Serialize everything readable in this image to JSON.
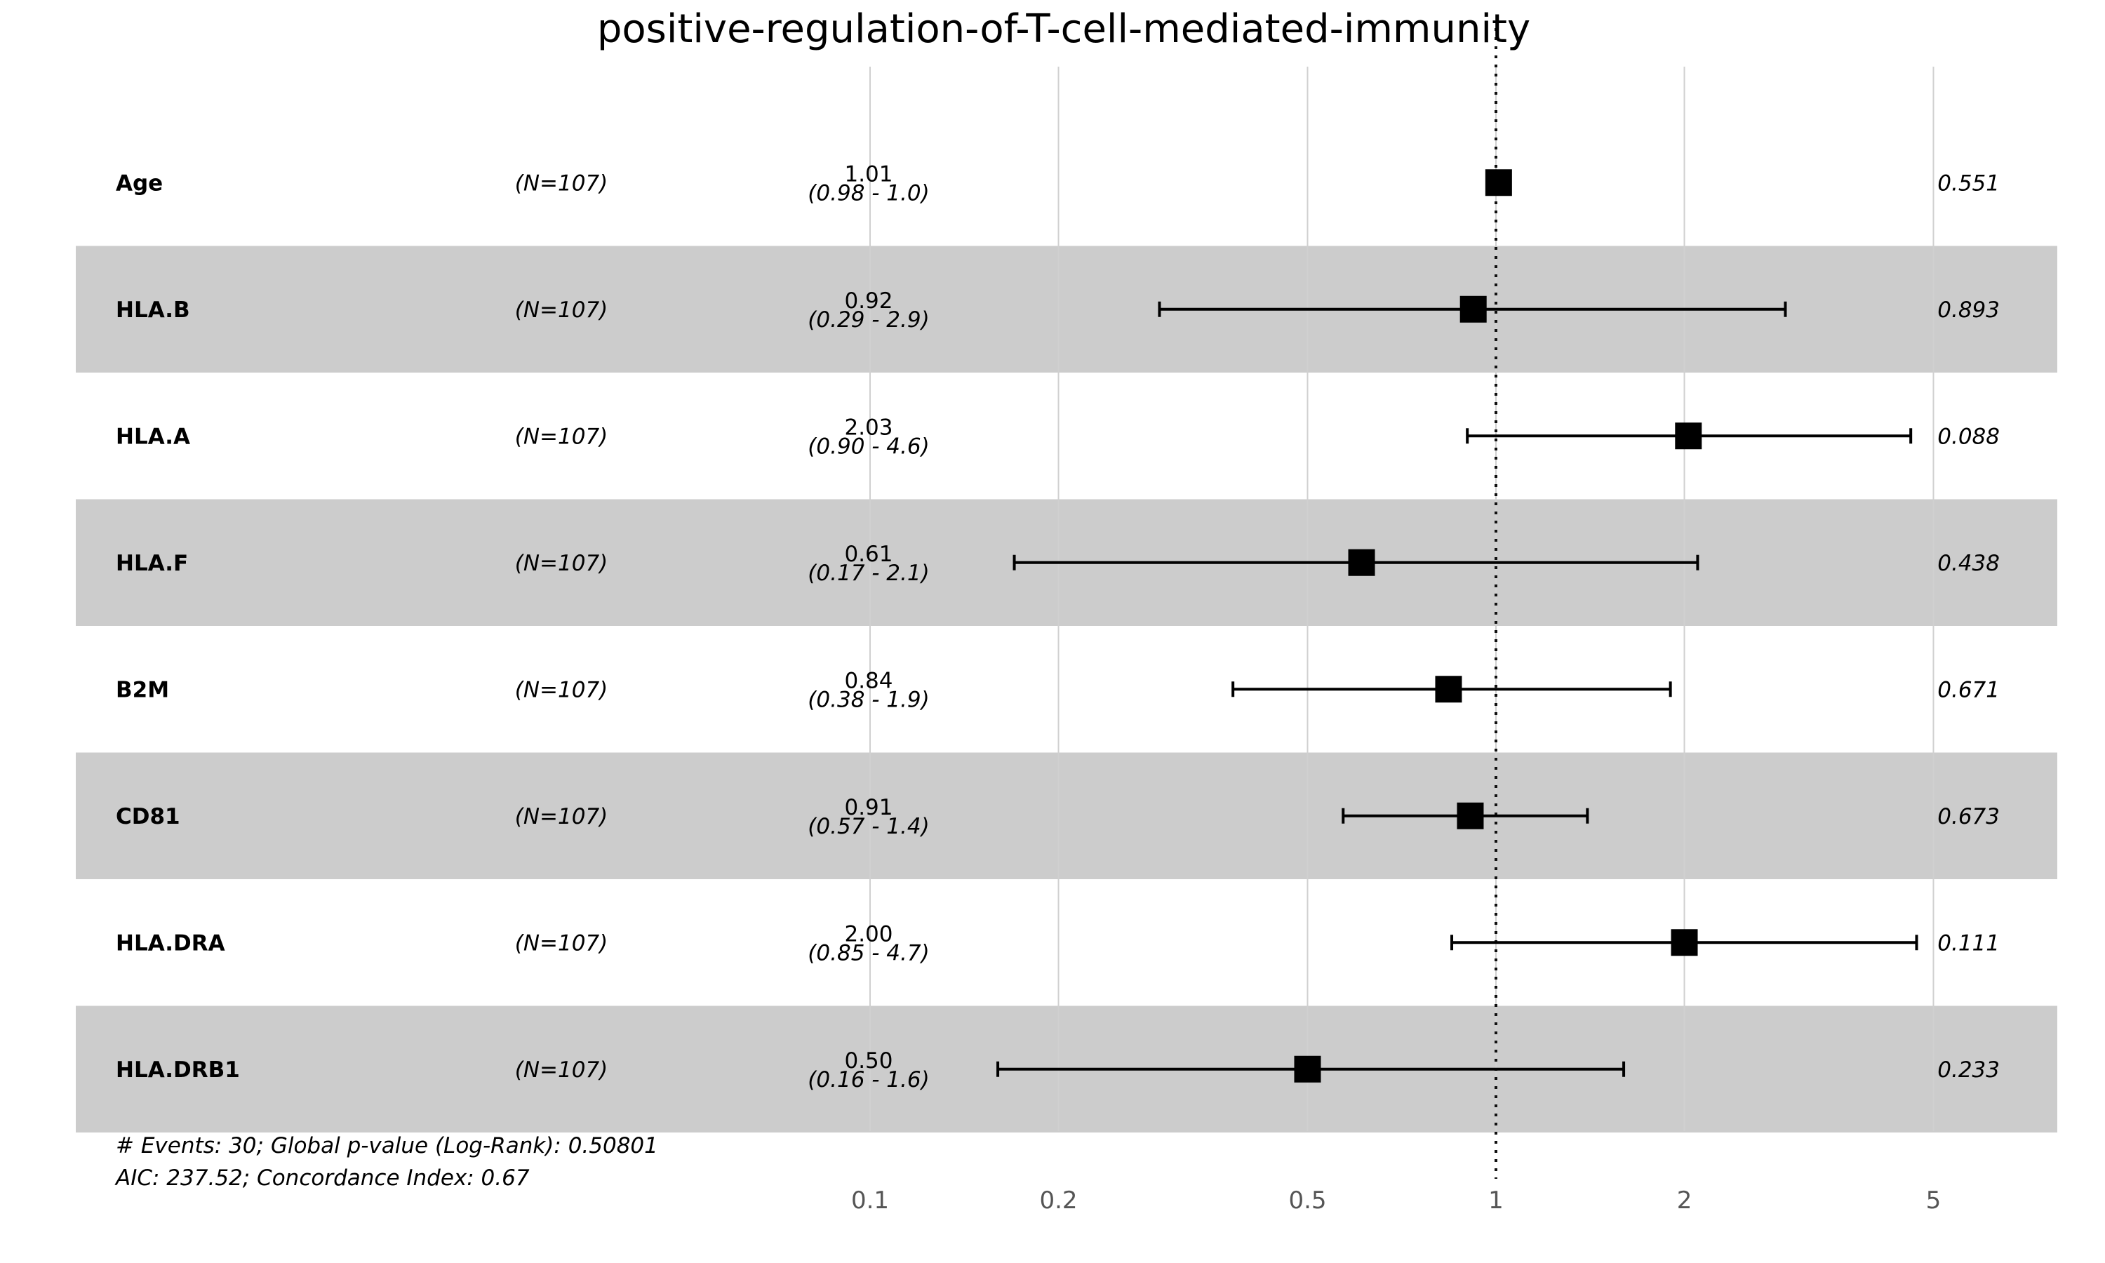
{
  "chart_data": {
    "type": "forest",
    "title": "positive-regulation-of-T-cell-mediated-immunity",
    "x_scale": "log",
    "xlim": [
      0.075,
      7.6
    ],
    "x_ticks": [
      0.1,
      0.2,
      0.5,
      1,
      2,
      5
    ],
    "x_tick_labels": [
      "0.1",
      "0.2",
      "0.5",
      "1",
      "2",
      "5"
    ],
    "reference_line": 1,
    "grid": true,
    "rows": [
      {
        "variable": "Age",
        "n": "(N=107)",
        "hr": 1.01,
        "lo": 0.98,
        "hi": 1.0,
        "hr_text": "1.01",
        "ci_text": "(0.98 - 1.0)",
        "p_text": "0.551"
      },
      {
        "variable": "HLA.B",
        "n": "(N=107)",
        "hr": 0.92,
        "lo": 0.29,
        "hi": 2.9,
        "hr_text": "0.92",
        "ci_text": "(0.29 - 2.9)",
        "p_text": "0.893"
      },
      {
        "variable": "HLA.A",
        "n": "(N=107)",
        "hr": 2.03,
        "lo": 0.9,
        "hi": 4.6,
        "hr_text": "2.03",
        "ci_text": "(0.90 - 4.6)",
        "p_text": "0.088"
      },
      {
        "variable": "HLA.F",
        "n": "(N=107)",
        "hr": 0.61,
        "lo": 0.17,
        "hi": 2.1,
        "hr_text": "0.61",
        "ci_text": "(0.17 - 2.1)",
        "p_text": "0.438"
      },
      {
        "variable": "B2M",
        "n": "(N=107)",
        "hr": 0.84,
        "lo": 0.38,
        "hi": 1.9,
        "hr_text": "0.84",
        "ci_text": "(0.38 - 1.9)",
        "p_text": "0.671"
      },
      {
        "variable": "CD81",
        "n": "(N=107)",
        "hr": 0.91,
        "lo": 0.57,
        "hi": 1.4,
        "hr_text": "0.91",
        "ci_text": "(0.57 - 1.4)",
        "p_text": "0.673"
      },
      {
        "variable": "HLA.DRA",
        "n": "(N=107)",
        "hr": 2.0,
        "lo": 0.85,
        "hi": 4.7,
        "hr_text": "2.00",
        "ci_text": "(0.85 - 4.7)",
        "p_text": "0.111"
      },
      {
        "variable": "HLA.DRB1",
        "n": "(N=107)",
        "hr": 0.5,
        "lo": 0.16,
        "hi": 1.6,
        "hr_text": "0.50",
        "ci_text": "(0.16 - 1.6)",
        "p_text": "0.233"
      }
    ],
    "footnote_1": "# Events: 30; Global p-value (Log-Rank): 0.50801",
    "footnote_2": "AIC: 237.52; Concordance Index: 0.67"
  },
  "colors": {
    "band": "#cccccc",
    "grid": "#d0d0d0",
    "marker": "#000000",
    "tick_text": "#555555"
  }
}
